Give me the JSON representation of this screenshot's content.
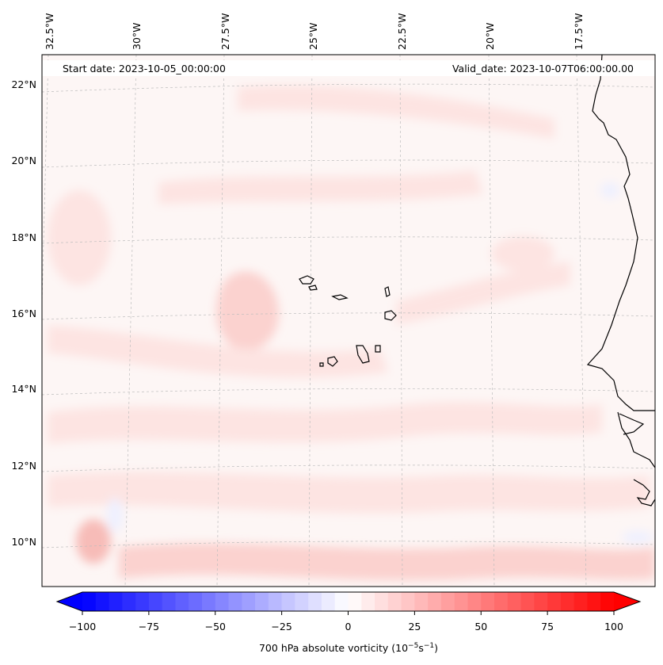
{
  "header": {
    "start_label": "Start date: 2023-10-05_00:00:00",
    "valid_label": "Valid_date: 2023-10-07T06:00:00.00"
  },
  "map": {
    "lon_labels": [
      "32.5°W",
      "30°W",
      "27.5°W",
      "25°W",
      "22.5°W",
      "20°W",
      "17.5°W"
    ],
    "lat_labels": [
      "22°N",
      "20°N",
      "18°N",
      "16°N",
      "14°N",
      "12°N",
      "10°N"
    ],
    "field": "700 hPa absolute vorticity",
    "colors": {
      "background": "#fdf6f5",
      "light_red": "#fde4e2",
      "mid_red": "#fbd2cf",
      "strong_red": "#f7bcb8",
      "light_blue": "#eef0ff",
      "coast": "#000000",
      "grid": "#bdbdbd"
    }
  },
  "colorbar": {
    "ticks": [
      "−100",
      "−75",
      "−50",
      "−25",
      "0",
      "25",
      "50",
      "75",
      "100"
    ],
    "label_main": "700 hPa absolute vorticity (10",
    "label_exp1": "−5",
    "label_mid": "s",
    "label_exp2": "−1",
    "label_end": ")",
    "min": -100,
    "max": 100,
    "low_color": "#0000ff",
    "high_color": "#ff0000"
  }
}
